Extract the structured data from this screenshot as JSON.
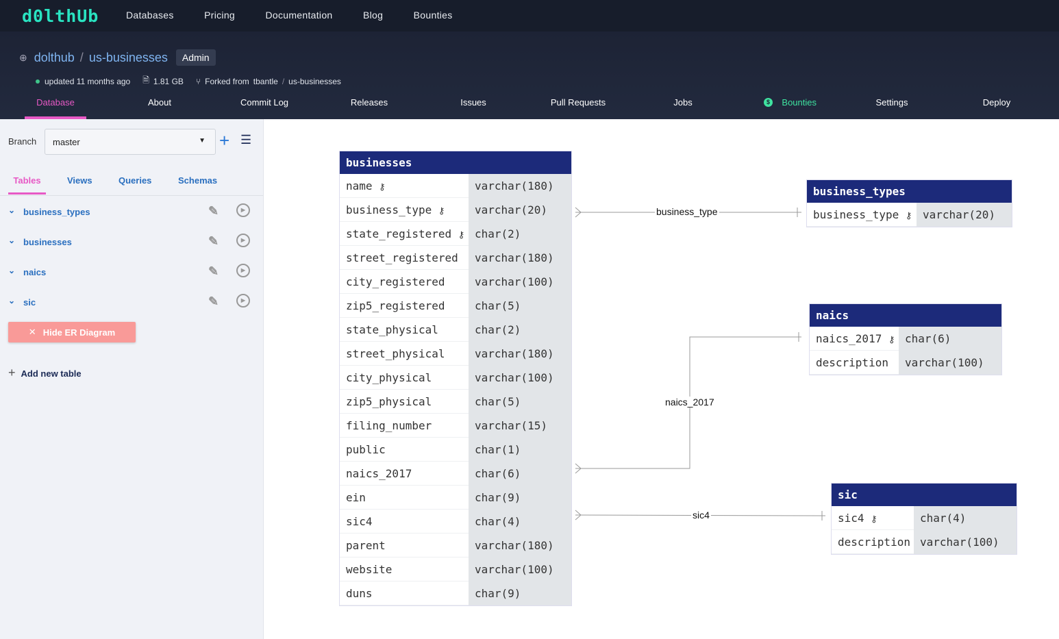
{
  "topbar": {
    "logo": "d0lthUb",
    "nav": [
      "Databases",
      "Pricing",
      "Documentation",
      "Blog",
      "Bounties"
    ]
  },
  "repo": {
    "owner": "dolthub",
    "name": "us-businesses",
    "badge": "Admin",
    "updated": "updated 11 months ago",
    "size": "1.81 GB",
    "forked_label": "Forked from",
    "forked_owner": "tbantle",
    "forked_repo": "us-businesses",
    "tabs": [
      "Database",
      "About",
      "Commit Log",
      "Releases",
      "Issues",
      "Pull Requests",
      "Jobs",
      "Bounties",
      "Settings",
      "Deploy"
    ],
    "active_tab": "Database"
  },
  "sidebar": {
    "branch_label": "Branch",
    "branch": "master",
    "tabs": [
      "Tables",
      "Views",
      "Queries",
      "Schemas"
    ],
    "tables": [
      "business_types",
      "businesses",
      "naics",
      "sic"
    ],
    "hide_er": "Hide ER Diagram",
    "add_table": "Add new table"
  },
  "diagram": {
    "tables": [
      {
        "name": "businesses",
        "columns": [
          [
            "name",
            true,
            "varchar(180)"
          ],
          [
            "business_type",
            true,
            "varchar(20)"
          ],
          [
            "state_registered",
            true,
            "char(2)"
          ],
          [
            "street_registered",
            false,
            "varchar(180)"
          ],
          [
            "city_registered",
            false,
            "varchar(100)"
          ],
          [
            "zip5_registered",
            false,
            "char(5)"
          ],
          [
            "state_physical",
            false,
            "char(2)"
          ],
          [
            "street_physical",
            false,
            "varchar(180)"
          ],
          [
            "city_physical",
            false,
            "varchar(100)"
          ],
          [
            "zip5_physical",
            false,
            "char(5)"
          ],
          [
            "filing_number",
            false,
            "varchar(15)"
          ],
          [
            "public",
            false,
            "char(1)"
          ],
          [
            "naics_2017",
            false,
            "char(6)"
          ],
          [
            "ein",
            false,
            "char(9)"
          ],
          [
            "sic4",
            false,
            "char(4)"
          ],
          [
            "parent",
            false,
            "varchar(180)"
          ],
          [
            "website",
            false,
            "varchar(100)"
          ],
          [
            "duns",
            false,
            "char(9)"
          ]
        ]
      },
      {
        "name": "business_types",
        "columns": [
          [
            "business_type",
            true,
            "varchar(20)"
          ]
        ]
      },
      {
        "name": "naics",
        "columns": [
          [
            "naics_2017",
            true,
            "char(6)"
          ],
          [
            "description",
            false,
            "varchar(100)"
          ]
        ]
      },
      {
        "name": "sic",
        "columns": [
          [
            "sic4",
            true,
            "char(4)"
          ],
          [
            "description",
            false,
            "varchar(100)"
          ]
        ]
      }
    ],
    "relations": [
      "business_type",
      "naics_2017",
      "sic4"
    ]
  }
}
